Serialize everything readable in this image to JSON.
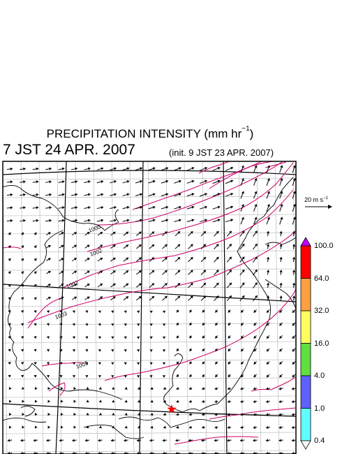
{
  "title": {
    "text": "PRECIPITATION INTENSITY (mm hr",
    "unit_exponent": "−1",
    "close": ")"
  },
  "valid_time": "7 JST 24 APR. 2007",
  "init_time": "(init. 9 JST 23 APR. 2007)",
  "wind_reference": {
    "label_prefix": "20 m s",
    "label_exponent": "−1",
    "speed_ms": 20
  },
  "colorbar": {
    "labels": [
      "100.0",
      "64.0",
      "32.0",
      "16.0",
      "4.0",
      "1.0",
      "0.4"
    ],
    "colors": [
      "#ff0000",
      "#ffa040",
      "#ffff60",
      "#60e040",
      "#6060ff",
      "#60ffff"
    ],
    "over_color": "#c000ff",
    "under_color": "#ffffff"
  },
  "isobars": [
    {
      "label": "1000"
    },
    {
      "label": "1002"
    },
    {
      "label": "1002"
    },
    {
      "label": "1003"
    },
    {
      "label": "1005"
    }
  ],
  "colors": {
    "isobar": "#cc0066",
    "marker": "#ff0000",
    "coast": "#000000",
    "grid": "#b0b0b0"
  },
  "marker": {
    "name": "star-icon"
  }
}
